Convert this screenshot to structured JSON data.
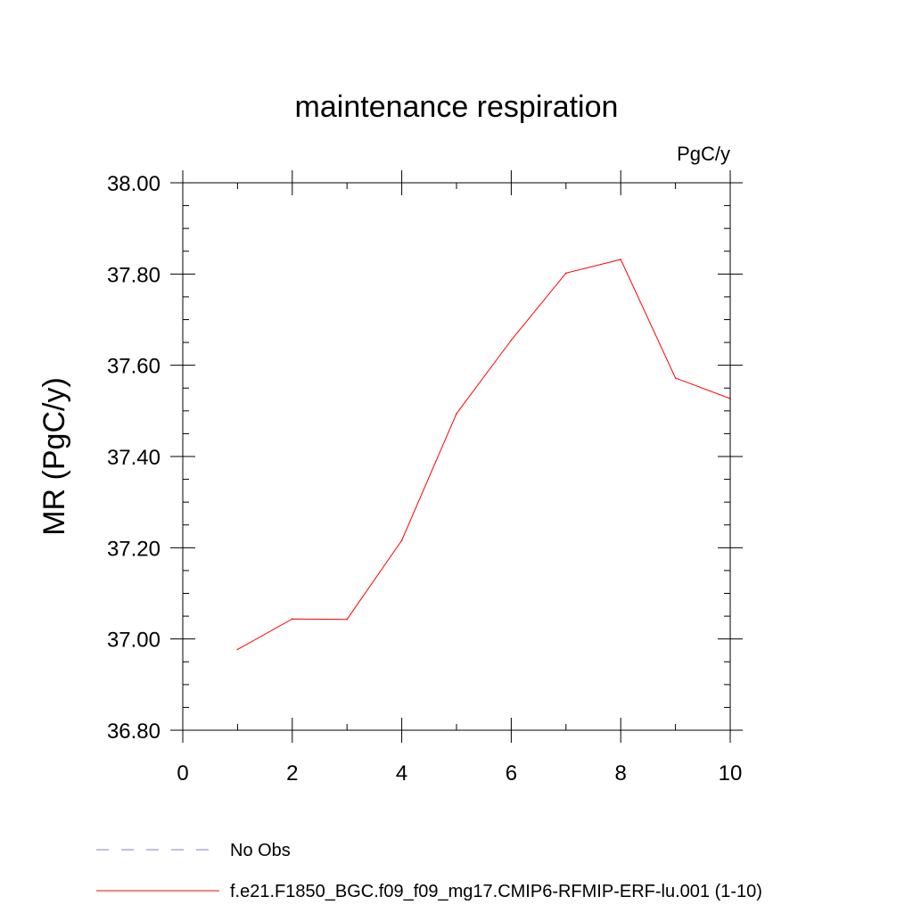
{
  "chart_data": {
    "type": "line",
    "title": "maintenance respiration",
    "units_label": "PgC/y",
    "xlabel": "",
    "ylabel": "MR  (PgC/y)",
    "xlim": [
      0,
      10
    ],
    "ylim": [
      36.8,
      38.0
    ],
    "x_ticks": [
      0,
      2,
      4,
      6,
      8,
      10
    ],
    "x_tick_labels": [
      "0",
      "2",
      "4",
      "6",
      "8",
      "10"
    ],
    "y_ticks": [
      36.8,
      37.0,
      37.2,
      37.4,
      37.6,
      37.8,
      38.0
    ],
    "y_tick_labels": [
      "36.80",
      "37.00",
      "37.20",
      "37.40",
      "37.60",
      "37.80",
      "38.00"
    ],
    "x_minor_step": 1,
    "y_minor_step": 0.05,
    "grid": false,
    "legend_position": "bottom-left",
    "legend": [
      {
        "label": "No Obs",
        "color": "#8080c0",
        "dash": "dashed"
      },
      {
        "label": "f.e21.F1850_BGC.f09_f09_mg17.CMIP6-RFMIP-ERF-lu.001 (1-10)",
        "color": "#ff0000",
        "dash": "solid"
      }
    ],
    "series": [
      {
        "name": "f.e21.F1850_BGC.f09_f09_mg17.CMIP6-RFMIP-ERF-lu.001 (1-10)",
        "color": "#ff0000",
        "x": [
          1,
          2,
          3,
          4,
          5,
          6,
          7,
          8,
          9,
          10
        ],
        "values": [
          36.977,
          37.044,
          37.043,
          37.216,
          37.494,
          37.655,
          37.802,
          37.832,
          37.572,
          37.527
        ]
      }
    ]
  }
}
